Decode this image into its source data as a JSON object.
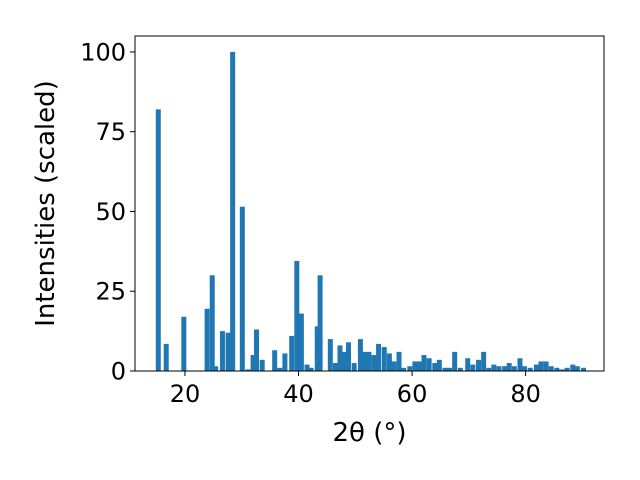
{
  "chart_data": {
    "type": "bar",
    "xlabel": "2θ (°)",
    "ylabel": "Intensities (scaled)",
    "xlim": [
      11.2,
      93.8
    ],
    "ylim": [
      0,
      105
    ],
    "x_ticks": [
      20,
      40,
      60,
      80
    ],
    "y_ticks": [
      0,
      25,
      50,
      75,
      100
    ],
    "grid": false,
    "bar_color": "#1f77b4",
    "series": [
      {
        "x": [
          15.3,
          16.7,
          19.8,
          23.9,
          24.8,
          25.4,
          26.6,
          27.6,
          28.4,
          30.1,
          31.1,
          32.0,
          32.6,
          33.6,
          35.8,
          36.7,
          37.6,
          38.8,
          39.7,
          40.5,
          41.5,
          42.2,
          43.3,
          43.8,
          45.6,
          46.5,
          47.3,
          48.1,
          48.8,
          49.8,
          50.9,
          51.6,
          52.4,
          53.3,
          54.1,
          55.1,
          56.0,
          56.8,
          57.7,
          58.5,
          59.6,
          60.5,
          61.3,
          62.1,
          63.0,
          64.0,
          64.8,
          65.8,
          66.6,
          67.5,
          68.5,
          69.8,
          70.7,
          71.7,
          72.6,
          73.5,
          74.4,
          75.3,
          76.3,
          77.1,
          78.0,
          79.0,
          79.8,
          80.8,
          81.9,
          82.7,
          83.6,
          84.5,
          85.5,
          86.4,
          87.3,
          88.3,
          89.1,
          90.2
        ],
        "values": [
          82,
          8.5,
          17,
          19.5,
          30,
          1.5,
          12.5,
          12,
          100,
          51.5,
          0.5,
          5,
          13,
          3.5,
          6.5,
          1,
          5.5,
          11,
          34.5,
          18,
          2,
          1,
          14,
          30,
          10,
          2.5,
          8,
          6,
          9,
          2.5,
          10,
          6,
          6,
          5,
          8.5,
          7.5,
          5.5,
          3,
          6,
          1,
          1.5,
          3,
          3,
          5,
          4,
          2.5,
          3.5,
          1,
          1,
          6,
          1,
          4,
          2,
          3.5,
          6,
          1,
          2,
          1.5,
          1.5,
          2.5,
          1.5,
          4,
          1.5,
          1,
          2,
          3,
          3,
          1.5,
          1,
          0.5,
          1,
          2,
          1.5,
          1
        ]
      }
    ]
  }
}
